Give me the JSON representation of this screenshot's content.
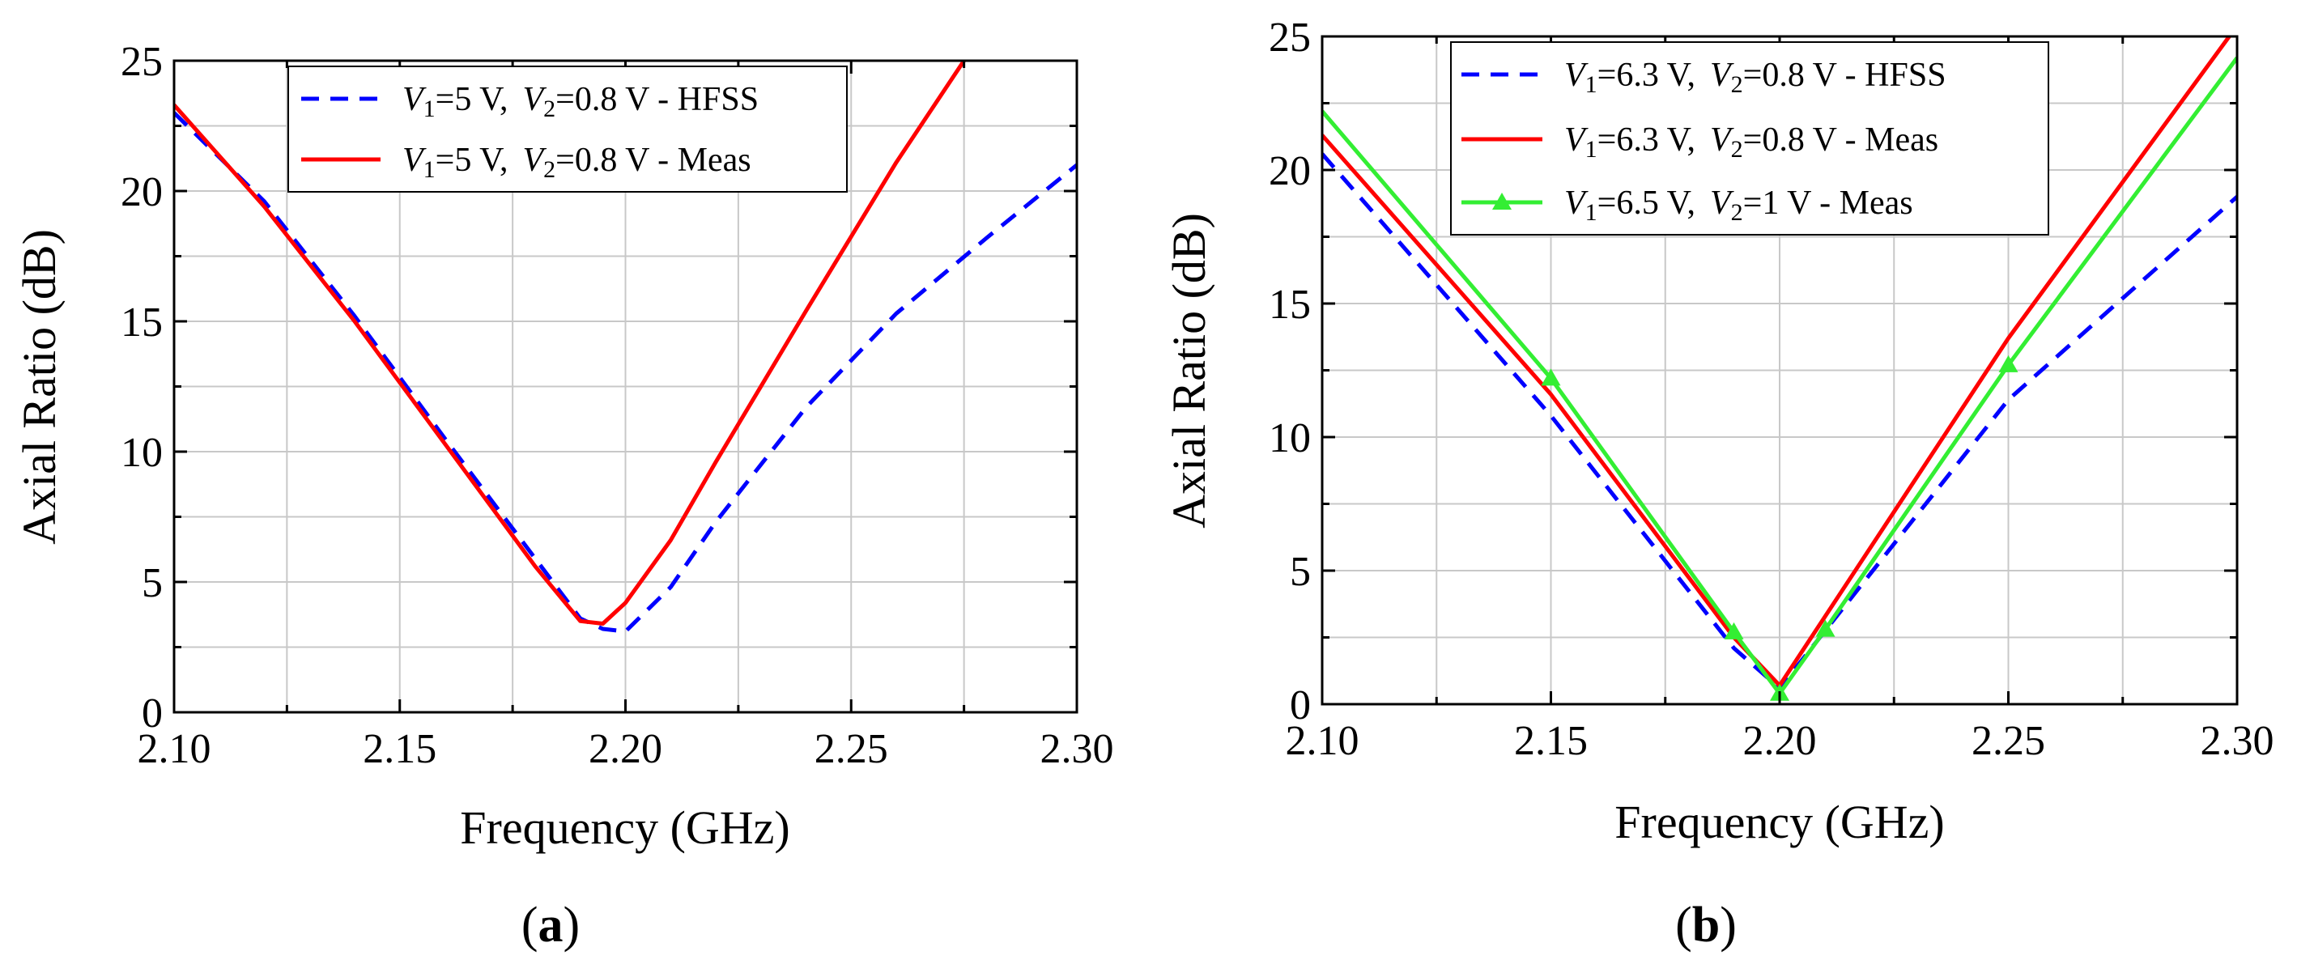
{
  "chart_data": [
    {
      "type": "line",
      "panel": {
        "open": "(",
        "letter": "a",
        "close": ")"
      },
      "xlabel": "Frequency (GHz)",
      "ylabel": "Axial Ratio (dB)",
      "xlim": [
        2.1,
        2.3
      ],
      "ylim": [
        0,
        25
      ],
      "xticks": [
        2.1,
        2.15,
        2.2,
        2.25,
        2.3
      ],
      "xtick_labels": [
        "2.10",
        "2.15",
        "2.20",
        "2.25",
        "2.30"
      ],
      "yticks": [
        0,
        5,
        10,
        15,
        20,
        25
      ],
      "ytick_labels": [
        "0",
        "5",
        "10",
        "15",
        "20",
        "25"
      ],
      "grid": true,
      "legend_position": "top-center",
      "series": [
        {
          "name": "V1=5 V, V2=0.8 V - HFSS",
          "legend": {
            "v1_var": "V",
            "v1_sub": "1",
            "v1_val": "=5 V,",
            "v2_var": "V",
            "v2_sub": "2",
            "v2_val": "=0.8 V - HFSS"
          },
          "color": "#0000ff",
          "dash": "dashed",
          "marker": "none",
          "x": [
            2.1,
            2.12,
            2.14,
            2.16,
            2.18,
            2.19,
            2.195,
            2.2,
            2.21,
            2.22,
            2.24,
            2.26,
            2.28,
            2.3
          ],
          "y": [
            23.0,
            19.6,
            15.2,
            10.5,
            5.9,
            3.6,
            3.2,
            3.1,
            4.8,
            7.3,
            11.7,
            15.3,
            18.2,
            21.0
          ]
        },
        {
          "name": "V1=5 V, V2=0.8 V - Meas",
          "legend": {
            "v1_var": "V",
            "v1_sub": "1",
            "v1_val": "=5 V,",
            "v2_var": "V",
            "v2_sub": "2",
            "v2_val": "=0.8 V - Meas"
          },
          "color": "#ff0000",
          "dash": "solid",
          "marker": "none",
          "x": [
            2.1,
            2.12,
            2.14,
            2.16,
            2.18,
            2.19,
            2.195,
            2.2,
            2.21,
            2.22,
            2.24,
            2.26,
            2.275
          ],
          "y": [
            23.3,
            19.4,
            15.0,
            10.3,
            5.6,
            3.5,
            3.4,
            4.2,
            6.6,
            9.6,
            15.4,
            21.1,
            25.0
          ]
        }
      ]
    },
    {
      "type": "line",
      "panel": {
        "open": "(",
        "letter": "b",
        "close": ")"
      },
      "xlabel": "Frequency (GHz)",
      "ylabel": "Axial Ratio (dB)",
      "xlim": [
        2.1,
        2.3
      ],
      "ylim": [
        0,
        25
      ],
      "xticks": [
        2.1,
        2.15,
        2.2,
        2.25,
        2.3
      ],
      "xtick_labels": [
        "2.10",
        "2.15",
        "2.20",
        "2.25",
        "2.30"
      ],
      "yticks": [
        0,
        5,
        10,
        15,
        20,
        25
      ],
      "ytick_labels": [
        "0",
        "5",
        "10",
        "15",
        "20",
        "25"
      ],
      "grid": true,
      "legend_position": "top-left",
      "series": [
        {
          "name": "V1=6.3 V, V2=0.8 V - HFSS",
          "legend": {
            "v1_var": "V",
            "v1_sub": "1",
            "v1_val": "=6.3 V,",
            "v2_var": "V",
            "v2_sub": "2",
            "v2_val": "=0.8 V - HFSS"
          },
          "color": "#0000ff",
          "dash": "dashed",
          "marker": "none",
          "x": [
            2.1,
            2.15,
            2.19,
            2.2,
            2.25,
            2.3
          ],
          "y": [
            20.6,
            10.8,
            2.1,
            0.6,
            11.4,
            19.0
          ]
        },
        {
          "name": "V1=6.3 V, V2=0.8 V - Meas",
          "legend": {
            "v1_var": "V",
            "v1_sub": "1",
            "v1_val": "=6.3 V,",
            "v2_var": "V",
            "v2_sub": "2",
            "v2_val": "=0.8 V - Meas"
          },
          "color": "#ff0000",
          "dash": "solid",
          "marker": "none",
          "x": [
            2.1,
            2.15,
            2.19,
            2.2,
            2.25,
            2.3
          ],
          "y": [
            21.3,
            11.6,
            2.5,
            0.7,
            13.7,
            25.4
          ]
        },
        {
          "name": "V1=6.5 V, V2=1 V - Meas",
          "legend": {
            "v1_var": "V",
            "v1_sub": "1",
            "v1_val": "=6.5 V,",
            "v2_var": "V",
            "v2_sub": "2",
            "v2_val": "=1 V - Meas"
          },
          "color": "#33ee33",
          "dash": "solid",
          "marker": "triangle",
          "x": [
            2.1,
            2.15,
            2.19,
            2.2,
            2.21,
            2.25,
            2.3
          ],
          "y": [
            22.2,
            12.2,
            2.7,
            0.4,
            2.8,
            12.7,
            24.2
          ]
        }
      ]
    }
  ]
}
